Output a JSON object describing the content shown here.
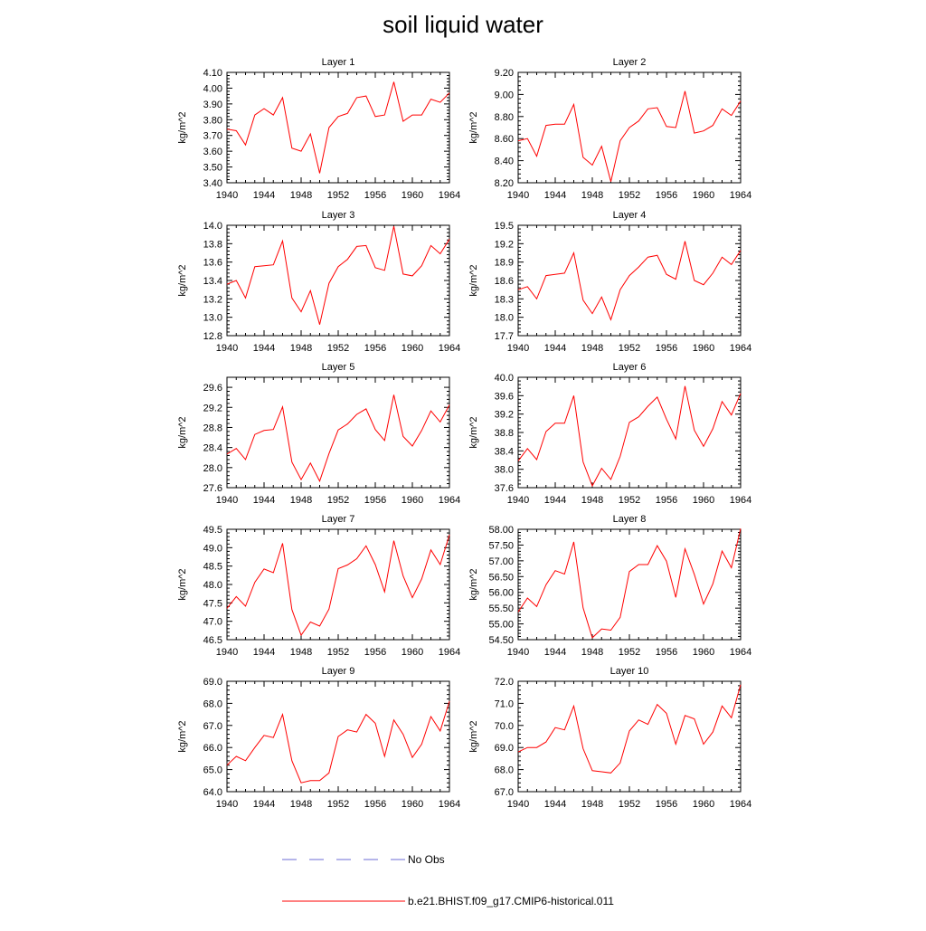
{
  "title": "soil liquid water",
  "legend": {
    "items": [
      {
        "label": "No Obs",
        "style": "dashed",
        "color": "#6b6bd6"
      },
      {
        "label": "b.e21.BHIST.f09_g17.CMIP6-historical.011",
        "style": "solid",
        "color": "#ff0000"
      }
    ]
  },
  "chart_data": [
    {
      "type": "line",
      "title": "Layer 1",
      "ylabel": "kg/m^2",
      "ylim": [
        3.4,
        4.1
      ],
      "yticks": [
        3.4,
        3.5,
        3.6,
        3.7,
        3.8,
        3.9,
        4.0,
        4.1
      ],
      "ydecimals": 2,
      "xlim": [
        1940,
        1964
      ],
      "xticks": [
        1940,
        1944,
        1948,
        1952,
        1956,
        1960,
        1964
      ],
      "x": [
        1940,
        1941,
        1942,
        1943,
        1944,
        1945,
        1946,
        1947,
        1948,
        1949,
        1950,
        1951,
        1952,
        1953,
        1954,
        1955,
        1956,
        1957,
        1958,
        1959,
        1960,
        1961,
        1962,
        1963,
        1964
      ],
      "series": [
        {
          "name": "b.e21.BHIST.f09_g17.CMIP6-historical.011",
          "values": [
            3.74,
            3.73,
            3.64,
            3.83,
            3.87,
            3.83,
            3.94,
            3.62,
            3.6,
            3.71,
            3.46,
            3.75,
            3.82,
            3.84,
            3.94,
            3.95,
            3.82,
            3.83,
            4.04,
            3.79,
            3.83,
            3.83,
            3.93,
            3.91,
            3.97
          ]
        }
      ]
    },
    {
      "type": "line",
      "title": "Layer 2",
      "ylabel": "kg/m^2",
      "ylim": [
        8.2,
        9.2
      ],
      "yticks": [
        8.2,
        8.4,
        8.6,
        8.8,
        9.0,
        9.2
      ],
      "ydecimals": 2,
      "xlim": [
        1940,
        1964
      ],
      "xticks": [
        1940,
        1944,
        1948,
        1952,
        1956,
        1960,
        1964
      ],
      "x": [
        1940,
        1941,
        1942,
        1943,
        1944,
        1945,
        1946,
        1947,
        1948,
        1949,
        1950,
        1951,
        1952,
        1953,
        1954,
        1955,
        1956,
        1957,
        1958,
        1959,
        1960,
        1961,
        1962,
        1963,
        1964
      ],
      "series": [
        {
          "name": "b.e21.BHIST.f09_g17.CMIP6-historical.011",
          "values": [
            8.58,
            8.6,
            8.44,
            8.72,
            8.73,
            8.73,
            8.91,
            8.43,
            8.36,
            8.53,
            8.21,
            8.58,
            8.7,
            8.76,
            8.87,
            8.88,
            8.71,
            8.7,
            9.03,
            8.65,
            8.67,
            8.72,
            8.87,
            8.81,
            8.94
          ]
        }
      ]
    },
    {
      "type": "line",
      "title": "Layer 3",
      "ylabel": "kg/m^2",
      "ylim": [
        12.8,
        14.0
      ],
      "yticks": [
        12.8,
        13.0,
        13.2,
        13.4,
        13.6,
        13.8,
        14.0
      ],
      "ydecimals": 1,
      "xlim": [
        1940,
        1964
      ],
      "xticks": [
        1940,
        1944,
        1948,
        1952,
        1956,
        1960,
        1964
      ],
      "x": [
        1940,
        1941,
        1942,
        1943,
        1944,
        1945,
        1946,
        1947,
        1948,
        1949,
        1950,
        1951,
        1952,
        1953,
        1954,
        1955,
        1956,
        1957,
        1958,
        1959,
        1960,
        1961,
        1962,
        1963,
        1964
      ],
      "series": [
        {
          "name": "b.e21.BHIST.f09_g17.CMIP6-historical.011",
          "values": [
            13.36,
            13.4,
            13.21,
            13.55,
            13.56,
            13.57,
            13.83,
            13.21,
            13.06,
            13.29,
            12.92,
            13.37,
            13.55,
            13.63,
            13.77,
            13.78,
            13.54,
            13.51,
            13.99,
            13.47,
            13.45,
            13.56,
            13.78,
            13.69,
            13.85
          ]
        }
      ]
    },
    {
      "type": "line",
      "title": "Layer 4",
      "ylabel": "kg/m^2",
      "ylim": [
        17.7,
        19.5
      ],
      "yticks": [
        17.7,
        18.0,
        18.3,
        18.6,
        18.9,
        19.2,
        19.5
      ],
      "ydecimals": 1,
      "xlim": [
        1940,
        1964
      ],
      "xticks": [
        1940,
        1944,
        1948,
        1952,
        1956,
        1960,
        1964
      ],
      "x": [
        1940,
        1941,
        1942,
        1943,
        1944,
        1945,
        1946,
        1947,
        1948,
        1949,
        1950,
        1951,
        1952,
        1953,
        1954,
        1955,
        1956,
        1957,
        1958,
        1959,
        1960,
        1961,
        1962,
        1963,
        1964
      ],
      "series": [
        {
          "name": "b.e21.BHIST.f09_g17.CMIP6-historical.011",
          "values": [
            18.45,
            18.5,
            18.3,
            18.68,
            18.7,
            18.72,
            19.05,
            18.28,
            18.06,
            18.33,
            17.96,
            18.45,
            18.68,
            18.82,
            18.98,
            19.01,
            18.7,
            18.62,
            19.24,
            18.6,
            18.53,
            18.72,
            18.98,
            18.86,
            19.09
          ]
        }
      ]
    },
    {
      "type": "line",
      "title": "Layer 5",
      "ylabel": "kg/m^2",
      "ylim": [
        27.6,
        29.8
      ],
      "yticks": [
        27.6,
        28.0,
        28.4,
        28.8,
        29.2,
        29.6
      ],
      "ydecimals": 1,
      "xlim": [
        1940,
        1964
      ],
      "xticks": [
        1940,
        1944,
        1948,
        1952,
        1956,
        1960,
        1964
      ],
      "x": [
        1940,
        1941,
        1942,
        1943,
        1944,
        1945,
        1946,
        1947,
        1948,
        1949,
        1950,
        1951,
        1952,
        1953,
        1954,
        1955,
        1956,
        1957,
        1958,
        1959,
        1960,
        1961,
        1962,
        1963,
        1964
      ],
      "series": [
        {
          "name": "b.e21.BHIST.f09_g17.CMIP6-historical.011",
          "values": [
            28.27,
            28.38,
            28.16,
            28.66,
            28.74,
            28.76,
            29.21,
            28.11,
            27.76,
            28.09,
            27.73,
            28.28,
            28.75,
            28.87,
            29.06,
            29.17,
            28.76,
            28.54,
            29.45,
            28.62,
            28.43,
            28.74,
            29.13,
            28.91,
            29.25
          ]
        }
      ]
    },
    {
      "type": "line",
      "title": "Layer 6",
      "ylabel": "kg/m^2",
      "ylim": [
        37.6,
        40.0
      ],
      "yticks": [
        37.6,
        38.0,
        38.4,
        38.8,
        39.2,
        39.6,
        40.0
      ],
      "ydecimals": 1,
      "xlim": [
        1940,
        1964
      ],
      "xticks": [
        1940,
        1944,
        1948,
        1952,
        1956,
        1960,
        1964
      ],
      "x": [
        1940,
        1941,
        1942,
        1943,
        1944,
        1945,
        1946,
        1947,
        1948,
        1949,
        1950,
        1951,
        1952,
        1953,
        1954,
        1955,
        1956,
        1957,
        1958,
        1959,
        1960,
        1961,
        1962,
        1963,
        1964
      ],
      "series": [
        {
          "name": "b.e21.BHIST.f09_g17.CMIP6-historical.011",
          "values": [
            38.18,
            38.45,
            38.21,
            38.82,
            39.0,
            39.0,
            39.6,
            38.16,
            37.64,
            38.02,
            37.78,
            38.28,
            39.02,
            39.14,
            39.37,
            39.57,
            39.09,
            38.66,
            39.81,
            38.85,
            38.5,
            38.88,
            39.47,
            39.18,
            39.65
          ]
        }
      ]
    },
    {
      "type": "line",
      "title": "Layer 7",
      "ylabel": "kg/m^2",
      "ylim": [
        46.5,
        49.5
      ],
      "yticks": [
        46.5,
        47.0,
        47.5,
        48.0,
        48.5,
        49.0,
        49.5
      ],
      "ydecimals": 1,
      "xlim": [
        1940,
        1964
      ],
      "xticks": [
        1940,
        1944,
        1948,
        1952,
        1956,
        1960,
        1964
      ],
      "x": [
        1940,
        1941,
        1942,
        1943,
        1944,
        1945,
        1946,
        1947,
        1948,
        1949,
        1950,
        1951,
        1952,
        1953,
        1954,
        1955,
        1956,
        1957,
        1958,
        1959,
        1960,
        1961,
        1962,
        1963,
        1964
      ],
      "series": [
        {
          "name": "b.e21.BHIST.f09_g17.CMIP6-historical.011",
          "values": [
            47.35,
            47.67,
            47.41,
            48.06,
            48.42,
            48.32,
            49.12,
            47.32,
            46.62,
            46.98,
            46.87,
            47.33,
            48.43,
            48.53,
            48.7,
            49.05,
            48.54,
            47.8,
            49.19,
            48.23,
            47.64,
            48.15,
            48.94,
            48.54,
            49.35
          ]
        }
      ]
    },
    {
      "type": "line",
      "title": "Layer 8",
      "ylabel": "kg/m^2",
      "ylim": [
        54.5,
        58.0
      ],
      "yticks": [
        54.5,
        55.0,
        55.5,
        56.0,
        56.5,
        57.0,
        57.5,
        58.0
      ],
      "ydecimals": 2,
      "xlim": [
        1940,
        1964
      ],
      "xticks": [
        1940,
        1944,
        1948,
        1952,
        1956,
        1960,
        1964
      ],
      "x": [
        1940,
        1941,
        1942,
        1943,
        1944,
        1945,
        1946,
        1947,
        1948,
        1949,
        1950,
        1951,
        1952,
        1953,
        1954,
        1955,
        1956,
        1957,
        1958,
        1959,
        1960,
        1961,
        1962,
        1963,
        1964
      ],
      "series": [
        {
          "name": "b.e21.BHIST.f09_g17.CMIP6-historical.011",
          "values": [
            55.38,
            55.82,
            55.55,
            56.24,
            56.69,
            56.58,
            57.6,
            55.51,
            54.56,
            54.84,
            54.8,
            55.21,
            56.66,
            56.88,
            56.88,
            57.48,
            56.99,
            55.84,
            57.38,
            56.57,
            55.63,
            56.27,
            57.31,
            56.78,
            58.02
          ]
        }
      ]
    },
    {
      "type": "line",
      "title": "Layer 9",
      "ylabel": "kg/m^2",
      "ylim": [
        64.0,
        69.0
      ],
      "yticks": [
        64.0,
        65.0,
        66.0,
        67.0,
        68.0,
        69.0
      ],
      "ydecimals": 1,
      "xlim": [
        1940,
        1964
      ],
      "xticks": [
        1940,
        1944,
        1948,
        1952,
        1956,
        1960,
        1964
      ],
      "x": [
        1940,
        1941,
        1942,
        1943,
        1944,
        1945,
        1946,
        1947,
        1948,
        1949,
        1950,
        1951,
        1952,
        1953,
        1954,
        1955,
        1956,
        1957,
        1958,
        1959,
        1960,
        1961,
        1962,
        1963,
        1964
      ],
      "series": [
        {
          "name": "b.e21.BHIST.f09_g17.CMIP6-historical.011",
          "values": [
            65.2,
            65.6,
            65.4,
            66.0,
            66.55,
            66.45,
            67.5,
            65.4,
            64.4,
            64.5,
            64.5,
            64.85,
            66.5,
            66.8,
            66.7,
            67.5,
            67.1,
            65.6,
            67.25,
            66.6,
            65.55,
            66.15,
            67.4,
            66.75,
            68.1
          ]
        }
      ]
    },
    {
      "type": "line",
      "title": "Layer 10",
      "ylabel": "kg/m^2",
      "ylim": [
        67.0,
        72.0
      ],
      "yticks": [
        67.0,
        68.0,
        69.0,
        70.0,
        71.0,
        72.0
      ],
      "ydecimals": 1,
      "xlim": [
        1940,
        1964
      ],
      "xticks": [
        1940,
        1944,
        1948,
        1952,
        1956,
        1960,
        1964
      ],
      "x": [
        1940,
        1941,
        1942,
        1943,
        1944,
        1945,
        1946,
        1947,
        1948,
        1949,
        1950,
        1951,
        1952,
        1953,
        1954,
        1955,
        1956,
        1957,
        1958,
        1959,
        1960,
        1961,
        1962,
        1963,
        1964
      ],
      "series": [
        {
          "name": "b.e21.BHIST.f09_g17.CMIP6-historical.011",
          "values": [
            68.8,
            69.0,
            69.0,
            69.25,
            69.9,
            69.8,
            70.88,
            68.95,
            67.95,
            67.9,
            67.85,
            68.3,
            69.75,
            70.25,
            70.05,
            70.95,
            70.55,
            69.15,
            70.45,
            70.3,
            69.15,
            69.7,
            70.88,
            70.35,
            71.85
          ]
        }
      ]
    }
  ]
}
